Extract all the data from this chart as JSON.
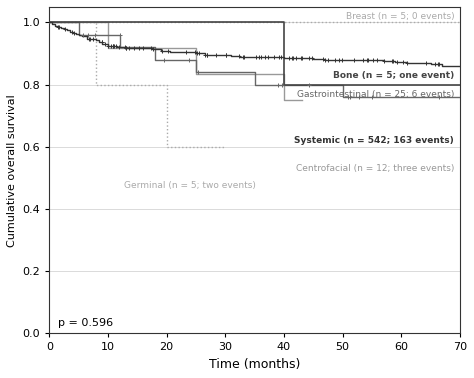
{
  "title": "",
  "xlabel": "Time (months)",
  "ylabel": "Cumulative overall survival",
  "xlim": [
    0,
    70
  ],
  "ylim": [
    0.0,
    1.05
  ],
  "yticks": [
    0.0,
    0.2,
    0.4,
    0.6,
    0.8,
    1.0
  ],
  "xticks": [
    0,
    10,
    20,
    30,
    40,
    50,
    60,
    70
  ],
  "p_value_text": "p = 0.596",
  "label_breast": "Breast (n = 5; 0 events)",
  "label_bone": "Bone (n = 5; one event)",
  "label_gi": "Gastrointestinal (n = 25; 6 events)",
  "label_systemic": "Systemic (n = 542; 163 events)",
  "label_germinal": "Germinal (n = 5; two events)",
  "label_centrofacial": "Centrofacial (n = 12; three events)",
  "color_systemic": "#333333",
  "color_breast": "#aaaaaa",
  "color_bone": "#444444",
  "color_gi": "#666666",
  "color_germinal": "#aaaaaa",
  "color_centrofacial": "#999999",
  "background_color": "#ffffff",
  "grid_color": "#cccccc"
}
